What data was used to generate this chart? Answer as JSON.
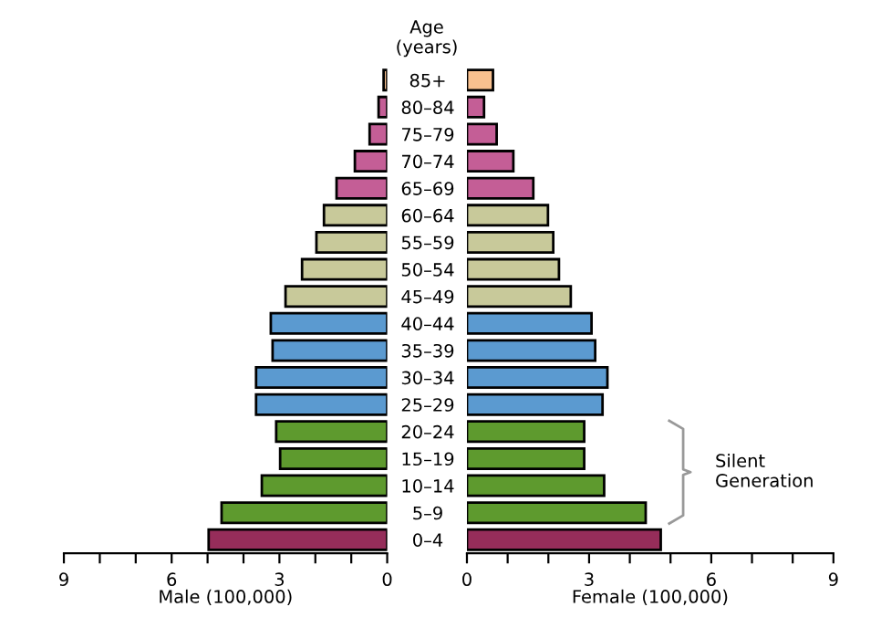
{
  "chart_data": [
    {
      "type": "bar",
      "orientation": "horizontal",
      "xlabel": "Male (100,000)",
      "categories": [
        "85+",
        "80–84",
        "75–79",
        "70–74",
        "65–69",
        "60–64",
        "55–59",
        "50–54",
        "45–49",
        "40–44",
        "35–39",
        "30–34",
        "25–29",
        "20–24",
        "15–19",
        "10–14",
        "5–9",
        "0–4"
      ],
      "values": [
        0.1,
        0.24,
        0.49,
        0.9,
        1.41,
        1.76,
        1.97,
        2.37,
        2.83,
        3.24,
        3.19,
        3.65,
        3.65,
        3.09,
        2.98,
        3.49,
        4.61,
        4.97
      ],
      "colors": [
        "#f9c18f",
        "#c45e96",
        "#c45e96",
        "#c45e96",
        "#c45e96",
        "#c8c99a",
        "#c8c99a",
        "#c8c99a",
        "#c8c99a",
        "#5b9ad0",
        "#5b9ad0",
        "#5b9ad0",
        "#5b9ad0",
        "#5e9a2e",
        "#5e9a2e",
        "#5e9a2e",
        "#5e9a2e",
        "#962d5a"
      ],
      "xlim": [
        9,
        0
      ],
      "xticks": [
        9,
        {
          "value": 8,
          "label": null
        },
        {
          "value": 7,
          "label": null
        },
        6,
        {
          "value": 5,
          "label": null
        },
        {
          "value": 4,
          "label": null
        },
        3,
        {
          "value": 2,
          "label": null
        },
        {
          "value": 1,
          "label": null
        },
        0
      ],
      "grid": false,
      "legend": false
    },
    {
      "type": "bar",
      "orientation": "horizontal",
      "xlabel": "Female (100,000)",
      "ylabel": "Age\n(years)",
      "tick_labels": "x",
      "categories": [
        "85+",
        "80–84",
        "75–79",
        "70–74",
        "65–69",
        "60–64",
        "55–59",
        "50–54",
        "45–49",
        "40–44",
        "35–39",
        "30–34",
        "25–29",
        "20–24",
        "15–19",
        "10–14",
        "5–9",
        "0–4"
      ],
      "values": [
        0.64,
        0.42,
        0.73,
        1.14,
        1.63,
        1.99,
        2.12,
        2.26,
        2.55,
        3.06,
        3.15,
        3.45,
        3.33,
        2.88,
        2.88,
        3.37,
        4.39,
        4.76
      ],
      "colors": [
        "#f9c18f",
        "#c45e96",
        "#c45e96",
        "#c45e96",
        "#c45e96",
        "#c8c99a",
        "#c8c99a",
        "#c8c99a",
        "#c8c99a",
        "#5b9ad0",
        "#5b9ad0",
        "#5b9ad0",
        "#5b9ad0",
        "#5e9a2e",
        "#5e9a2e",
        "#5e9a2e",
        "#5e9a2e",
        "#962d5a"
      ],
      "xlim": [
        0,
        9
      ],
      "xticks": [
        0,
        {
          "value": 1,
          "label": null
        },
        {
          "value": 2,
          "label": null
        },
        3,
        {
          "value": 4,
          "label": null
        },
        {
          "value": 5,
          "label": null
        },
        6,
        {
          "value": 7,
          "label": null
        },
        {
          "value": 8,
          "label": null
        },
        9
      ],
      "annotations": [
        "Silent\nGeneration"
      ],
      "grid": false,
      "legend": false
    }
  ]
}
